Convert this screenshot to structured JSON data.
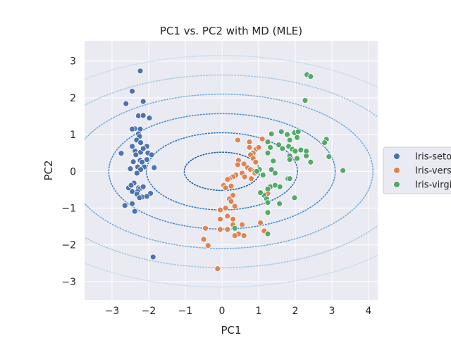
{
  "chart_data": {
    "type": "scatter",
    "title": "PC1 vs. PC2 with MD (MLE)",
    "xlabel": "PC1",
    "ylabel": "PC2",
    "xlim": [
      -3.75,
      4.25
    ],
    "ylim": [
      -3.5,
      3.55
    ],
    "xticks": [
      -3,
      -2,
      -1,
      0,
      1,
      2,
      3,
      4
    ],
    "xtick_labels": [
      "−3",
      "−2",
      "−1",
      "0",
      "1",
      "2",
      "3",
      "4"
    ],
    "yticks": [
      -3,
      -2,
      -1,
      0,
      1,
      2,
      3
    ],
    "ytick_labels": [
      "−3",
      "−2",
      "−1",
      "0",
      "1",
      "2",
      "3"
    ],
    "grid": true,
    "legend_position": "right-outside",
    "contours": [
      {
        "level": 1,
        "rx": 1.03,
        "ry": 0.52,
        "color": "#1f5f9e"
      },
      {
        "level": 2,
        "rx": 2.06,
        "ry": 1.05,
        "color": "#2f7bbd"
      },
      {
        "level": 3,
        "rx": 3.09,
        "ry": 1.57,
        "color": "#4a90c8"
      },
      {
        "level": 4,
        "rx": 4.12,
        "ry": 2.1,
        "color": "#7ab0d8"
      },
      {
        "level": 5,
        "rx": 5.15,
        "ry": 2.62,
        "color": "#a8c9e5"
      },
      {
        "level": 6,
        "rx": 6.18,
        "ry": 3.15,
        "color": "#c7dcee"
      }
    ],
    "series": [
      {
        "name": "Iris-setosa",
        "color": "#4c72b0",
        "points": [
          [
            -2.23,
            2.73
          ],
          [
            -2.45,
            2.18
          ],
          [
            -2.62,
            1.84
          ],
          [
            -2.15,
            1.9
          ],
          [
            -2.28,
            1.51
          ],
          [
            -2.15,
            1.52
          ],
          [
            -1.98,
            1.45
          ],
          [
            -2.38,
            1.16
          ],
          [
            -2.45,
            1.15
          ],
          [
            -2.23,
            1.15
          ],
          [
            -2.28,
            1.02
          ],
          [
            -2.25,
            0.95
          ],
          [
            -2.33,
            0.85
          ],
          [
            -2.22,
            0.78
          ],
          [
            -2.05,
            0.68
          ],
          [
            -2.45,
            0.68
          ],
          [
            -2.37,
            0.55
          ],
          [
            -2.02,
            0.5
          ],
          [
            -2.22,
            0.52
          ],
          [
            -2.35,
            0.45
          ],
          [
            -1.92,
            0.45
          ],
          [
            -2.23,
            0.3
          ],
          [
            -2.18,
            0.25
          ],
          [
            -2.05,
            0.32
          ],
          [
            -2.75,
            0.49
          ],
          [
            -2.42,
            0.26
          ],
          [
            -2.3,
            0.12
          ],
          [
            -2.12,
            0.12
          ],
          [
            -2.5,
            0.07
          ],
          [
            -2.22,
            0.05
          ],
          [
            -1.85,
            0.1
          ],
          [
            -2.32,
            -0.05
          ],
          [
            -2.4,
            -0.32
          ],
          [
            -2.55,
            -0.45
          ],
          [
            -2.48,
            -0.38
          ],
          [
            -2.28,
            -0.45
          ],
          [
            -2.25,
            -0.48
          ],
          [
            -2.15,
            -0.42
          ],
          [
            -2.45,
            -0.55
          ],
          [
            -2.3,
            -0.55
          ],
          [
            -1.95,
            -0.6
          ],
          [
            -2.32,
            -0.62
          ],
          [
            -2.18,
            -0.7
          ],
          [
            -2.05,
            -0.68
          ],
          [
            -2.25,
            -0.72
          ],
          [
            -2.45,
            -0.88
          ],
          [
            -2.65,
            -0.93
          ],
          [
            -2.38,
            -1.09
          ],
          [
            -1.88,
            -2.33
          ],
          [
            -2.15,
            0.62
          ]
        ]
      },
      {
        "name": "Iris-versicolor",
        "color": "#dd8452",
        "points": [
          [
            0.43,
            0.85
          ],
          [
            0.75,
            0.8
          ],
          [
            1.1,
            0.88
          ],
          [
            0.93,
            0.6
          ],
          [
            0.75,
            0.65
          ],
          [
            0.85,
            0.5
          ],
          [
            1.0,
            0.65
          ],
          [
            0.78,
            0.45
          ],
          [
            0.85,
            0.35
          ],
          [
            0.92,
            0.25
          ],
          [
            0.45,
            0.3
          ],
          [
            0.6,
            0.2
          ],
          [
            0.43,
            0.18
          ],
          [
            0.7,
            0.1
          ],
          [
            0.78,
            0.05
          ],
          [
            0.88,
            0.0
          ],
          [
            0.55,
            -0.05
          ],
          [
            0.62,
            -0.15
          ],
          [
            0.8,
            -0.2
          ],
          [
            0.38,
            -0.1
          ],
          [
            0.3,
            -0.15
          ],
          [
            0.2,
            -0.2
          ],
          [
            0.15,
            -0.22
          ],
          [
            0.05,
            -0.38
          ],
          [
            0.25,
            -0.4
          ],
          [
            0.1,
            -0.45
          ],
          [
            0.3,
            -0.65
          ],
          [
            0.2,
            -0.75
          ],
          [
            0.25,
            -0.82
          ],
          [
            0.35,
            -0.95
          ],
          [
            0.1,
            -1.0
          ],
          [
            -0.05,
            -1.05
          ],
          [
            0.15,
            -1.22
          ],
          [
            0.3,
            -1.3
          ],
          [
            -0.05,
            -1.3
          ],
          [
            0.3,
            -1.45
          ],
          [
            0.55,
            -1.45
          ],
          [
            -0.05,
            -1.58
          ],
          [
            0.15,
            -1.58
          ],
          [
            0.45,
            -1.7
          ],
          [
            0.6,
            -1.75
          ],
          [
            0.35,
            -1.75
          ],
          [
            -0.45,
            -1.55
          ],
          [
            -0.5,
            -1.85
          ],
          [
            -0.38,
            -2.02
          ],
          [
            -0.12,
            -2.65
          ],
          [
            1.05,
            -1.4
          ],
          [
            1.15,
            -1.62
          ],
          [
            1.25,
            -0.6
          ],
          [
            0.9,
            -0.05
          ]
        ]
      },
      {
        "name": "Iris-virginica",
        "color": "#55a868",
        "points": [
          [
            2.32,
            2.63
          ],
          [
            2.42,
            2.58
          ],
          [
            2.27,
            1.93
          ],
          [
            1.35,
            1.02
          ],
          [
            1.62,
            1.08
          ],
          [
            1.78,
            1.0
          ],
          [
            1.98,
            1.05
          ],
          [
            2.08,
            1.08
          ],
          [
            2.05,
            0.92
          ],
          [
            1.85,
            0.85
          ],
          [
            2.85,
            0.87
          ],
          [
            2.8,
            0.78
          ],
          [
            1.25,
            0.8
          ],
          [
            1.55,
            0.72
          ],
          [
            1.82,
            0.68
          ],
          [
            1.92,
            0.6
          ],
          [
            2.0,
            0.55
          ],
          [
            2.15,
            0.58
          ],
          [
            2.3,
            0.55
          ],
          [
            1.32,
            0.65
          ],
          [
            1.65,
            0.62
          ],
          [
            1.85,
            0.42
          ],
          [
            2.3,
            0.42
          ],
          [
            2.92,
            0.4
          ],
          [
            1.25,
            0.5
          ],
          [
            1.4,
            0.28
          ],
          [
            1.85,
            0.32
          ],
          [
            2.05,
            0.35
          ],
          [
            2.42,
            0.25
          ],
          [
            1.35,
            0.05
          ],
          [
            1.02,
            0.05
          ],
          [
            0.95,
            0.0
          ],
          [
            3.3,
            0.02
          ],
          [
            1.45,
            -0.05
          ],
          [
            1.12,
            -0.1
          ],
          [
            1.32,
            -0.42
          ],
          [
            1.45,
            -0.38
          ],
          [
            1.58,
            -0.42
          ],
          [
            1.25,
            -0.48
          ],
          [
            1.15,
            -0.65
          ],
          [
            1.22,
            -0.75
          ],
          [
            1.05,
            -0.58
          ],
          [
            1.25,
            -0.85
          ],
          [
            1.57,
            -0.88
          ],
          [
            1.98,
            -0.72
          ],
          [
            1.25,
            -1.12
          ],
          [
            1.8,
            -0.2
          ],
          [
            1.85,
            -0.2
          ],
          [
            1.25,
            -1.7
          ],
          [
            0.35,
            -1.55
          ]
        ]
      }
    ]
  }
}
